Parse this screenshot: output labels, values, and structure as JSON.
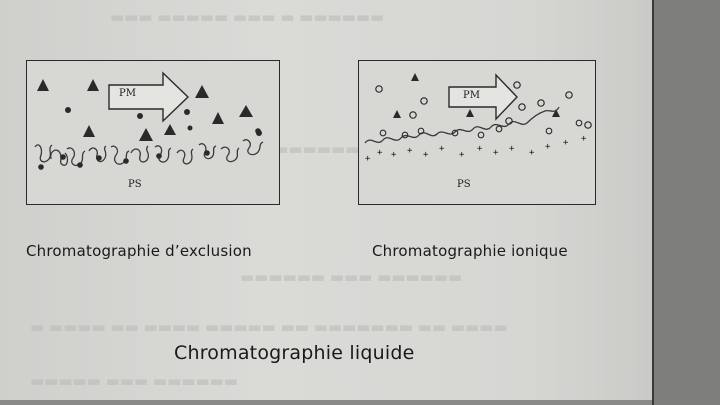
{
  "captions": {
    "left": "Chromatographie d’exclusion",
    "right": "Chromatographie ionique",
    "main": "Chromatographie liquide"
  },
  "panels": {
    "left": {
      "mobile_phase_label": "PM",
      "stationary_phase_label": "PS"
    },
    "right": {
      "mobile_phase_label": "PM",
      "stationary_phase_label": "PS"
    }
  },
  "colors": {
    "ink": "#2a2a2a",
    "panel_bg": "#d7d7d4",
    "page_bg": "#d8d8d5"
  }
}
